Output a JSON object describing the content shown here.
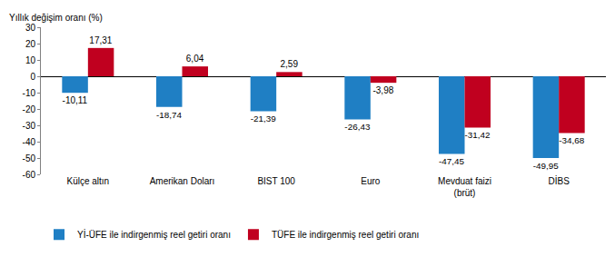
{
  "chart_data": {
    "type": "bar",
    "ylabel": "Yıllık değişim oranı (%)",
    "categories": [
      "Külçe altın",
      "Amerikan Doları",
      "BIST 100",
      "Euro",
      "Mevduat faizi (brüt)",
      "DİBS"
    ],
    "series": [
      {
        "name": "Yİ-ÜFE ile indirgenmiş reel getiri oranı",
        "color": "#1f7fc4",
        "values": [
          -10.11,
          -18.74,
          -21.39,
          -26.43,
          -47.45,
          -49.95
        ],
        "value_labels": [
          "-10,11",
          "-18,74",
          "-21,39",
          "-26,43",
          "-47,45",
          "-49,95"
        ]
      },
      {
        "name": "TÜFE ile indirgenmiş reel getiri oranı",
        "color": "#c0001f",
        "values": [
          17.31,
          6.04,
          2.59,
          -3.98,
          -31.42,
          -34.68
        ],
        "value_labels": [
          "17,31",
          "6,04",
          "2,59",
          "-3,98",
          "-31,42",
          "-34,68"
        ]
      }
    ],
    "ylim": [
      -60,
      30
    ],
    "yticks": [
      -60,
      -50,
      -40,
      -30,
      -20,
      -10,
      0,
      10,
      20,
      30
    ],
    "grid": false,
    "legend": "bottom",
    "data_labels": true
  }
}
